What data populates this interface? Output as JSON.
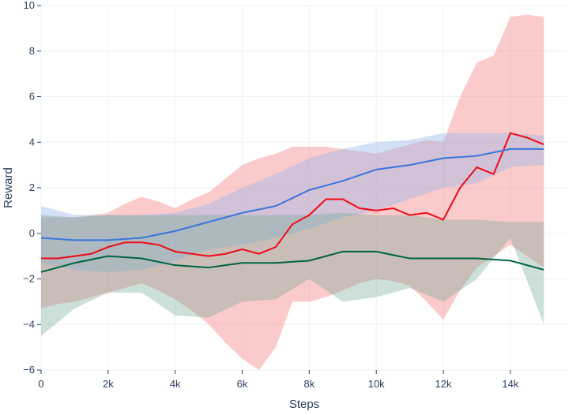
{
  "chart_data": {
    "type": "line",
    "title": "",
    "xlabel": "Steps",
    "ylabel": "Reward",
    "xlim": [
      0,
      15700
    ],
    "ylim": [
      -6,
      10
    ],
    "xticks": [
      0,
      2000,
      4000,
      6000,
      8000,
      10000,
      12000,
      14000
    ],
    "xtick_labels": [
      "0",
      "2k",
      "4k",
      "6k",
      "8k",
      "10k",
      "12k",
      "14k"
    ],
    "yticks": [
      -6,
      -4,
      -2,
      0,
      2,
      4,
      6,
      8,
      10
    ],
    "ytick_labels": [
      "−6",
      "−4",
      "−2",
      "0",
      "2",
      "4",
      "6",
      "8",
      "10"
    ],
    "grid": true,
    "legend": "none",
    "series": [
      {
        "name": "red",
        "color": "#f00a14",
        "band_color": "rgba(246,130,132,0.42)",
        "x": [
          0,
          500,
          1000,
          1500,
          2000,
          2500,
          3000,
          3500,
          4000,
          4500,
          5000,
          5500,
          6000,
          6500,
          7000,
          7500,
          8000,
          8500,
          9000,
          9500,
          10000,
          10500,
          11000,
          11500,
          12000,
          12500,
          13000,
          13500,
          14000,
          14500,
          15000
        ],
        "mean": [
          -1.1,
          -1.1,
          -1.0,
          -0.9,
          -0.6,
          -0.4,
          -0.4,
          -0.5,
          -0.8,
          -0.9,
          -1.0,
          -0.9,
          -0.7,
          -0.9,
          -0.6,
          0.4,
          0.8,
          1.5,
          1.5,
          1.1,
          1.0,
          1.1,
          0.8,
          0.9,
          0.6,
          2.0,
          2.9,
          2.6,
          4.4,
          4.2,
          3.9
        ],
        "upper": [
          0.7,
          0.7,
          0.7,
          0.8,
          0.9,
          1.3,
          1.6,
          1.4,
          1.1,
          1.5,
          1.8,
          2.4,
          3.0,
          3.3,
          3.5,
          3.8,
          3.8,
          3.8,
          3.7,
          3.6,
          3.5,
          3.7,
          3.9,
          4.1,
          4.0,
          6.0,
          7.5,
          7.8,
          9.5,
          9.6,
          9.5
        ],
        "lower": [
          -3.3,
          -3.1,
          -3.0,
          -2.8,
          -2.6,
          -2.4,
          -2.2,
          -2.5,
          -2.9,
          -3.4,
          -4.0,
          -4.8,
          -5.5,
          -6.0,
          -5.0,
          -3.0,
          -3.0,
          -2.8,
          -2.5,
          -2.2,
          -2.0,
          -2.1,
          -2.3,
          -3.0,
          -3.8,
          -2.5,
          -1.5,
          -1.0,
          -0.5,
          -1.0,
          -1.5
        ]
      },
      {
        "name": "blue",
        "color": "#3b75d9",
        "band_color": "rgba(150,180,232,0.42)",
        "x": [
          0,
          1000,
          2000,
          3000,
          4000,
          5000,
          6000,
          7000,
          8000,
          9000,
          10000,
          11000,
          12000,
          13000,
          14000,
          15000
        ],
        "mean": [
          -0.2,
          -0.3,
          -0.3,
          -0.2,
          0.1,
          0.5,
          0.9,
          1.2,
          1.9,
          2.3,
          2.8,
          3.0,
          3.3,
          3.4,
          3.7,
          3.7
        ],
        "upper": [
          1.2,
          0.8,
          0.8,
          0.8,
          0.9,
          1.3,
          2.0,
          2.6,
          3.3,
          3.7,
          4.0,
          4.1,
          4.4,
          4.4,
          4.4,
          4.3
        ],
        "lower": [
          -1.3,
          -1.6,
          -1.7,
          -1.6,
          -1.2,
          -0.7,
          -0.5,
          -0.2,
          0.2,
          0.7,
          1.0,
          1.5,
          2.0,
          2.2,
          2.9,
          3.0
        ]
      },
      {
        "name": "green",
        "color": "#006343",
        "band_color": "rgba(110,165,145,0.35)",
        "x": [
          0,
          1000,
          2000,
          3000,
          4000,
          5000,
          6000,
          7000,
          8000,
          9000,
          10000,
          11000,
          12000,
          13000,
          14000,
          15000
        ],
        "mean": [
          -1.7,
          -1.3,
          -1.0,
          -1.1,
          -1.4,
          -1.5,
          -1.3,
          -1.3,
          -1.2,
          -0.8,
          -0.8,
          -1.1,
          -1.1,
          -1.1,
          -1.2,
          -1.6
        ],
        "upper": [
          0.8,
          0.7,
          0.8,
          0.8,
          0.8,
          0.8,
          0.8,
          0.8,
          0.8,
          0.9,
          0.8,
          0.8,
          0.6,
          0.6,
          0.5,
          0.5
        ],
        "lower": [
          -4.5,
          -3.3,
          -2.6,
          -2.6,
          -3.6,
          -3.7,
          -3.0,
          -2.9,
          -2.0,
          -3.0,
          -2.8,
          -2.4,
          -3.0,
          -2.0,
          -0.2,
          -4.0
        ]
      }
    ]
  }
}
